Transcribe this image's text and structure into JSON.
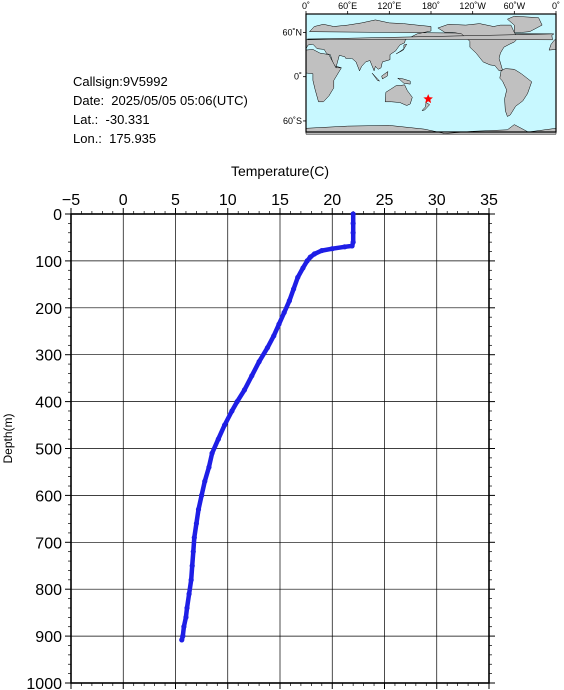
{
  "station": {
    "callsign": "Callsign:9V5992",
    "date": "Date:  2025/05/05 05:06(UTC)",
    "lat": "Lat.:  -30.331",
    "lon": "Lon.:  175.935"
  },
  "map": {
    "lon_labels": [
      "0˚",
      "60˚E",
      "120˚E",
      "180˚",
      "120˚W",
      "60˚W",
      "0˚"
    ],
    "lat_labels": [
      "60˚N",
      "0˚",
      "60˚S"
    ],
    "colors": {
      "ocean": "#c8f8ff",
      "land": "#c0c0c0",
      "marker": "#ff0000"
    },
    "marker": {
      "lat": -30.331,
      "lon": 175.935
    }
  },
  "chart_data": {
    "type": "line",
    "xlabel": "Temperature(C)",
    "ylabel": "Depth(m)",
    "xlim": [
      -5,
      35
    ],
    "ylim": [
      0,
      1000
    ],
    "y_inverted": true,
    "x_ticks": [
      -5,
      0,
      5,
      10,
      15,
      20,
      25,
      30,
      35
    ],
    "y_ticks": [
      0,
      100,
      200,
      300,
      400,
      500,
      600,
      700,
      800,
      900,
      1000
    ],
    "grid": true,
    "line_color": "#1e1ee6",
    "series": [
      {
        "x": [
          22.0,
          22.0,
          22.0,
          22.0,
          21.9,
          21.2,
          20.0,
          19.0,
          18.3,
          17.9,
          17.6,
          17.2,
          16.7,
          16.3,
          15.9,
          15.4,
          14.9,
          14.4,
          13.8,
          13.0,
          12.3,
          11.6,
          10.9,
          10.4,
          9.7,
          9.1,
          8.5,
          8.2,
          7.8,
          7.5,
          7.2,
          7.0,
          6.8,
          6.7,
          6.6,
          6.5,
          6.3,
          6.1,
          6.0,
          5.8,
          5.7,
          5.6
        ],
        "y": [
          0,
          20,
          40,
          60,
          68,
          70,
          74,
          78,
          85,
          92,
          100,
          115,
          135,
          160,
          185,
          210,
          235,
          260,
          285,
          315,
          345,
          375,
          400,
          420,
          450,
          480,
          510,
          540,
          570,
          600,
          630,
          660,
          690,
          720,
          750,
          780,
          810,
          840,
          860,
          880,
          900,
          908
        ]
      }
    ]
  }
}
